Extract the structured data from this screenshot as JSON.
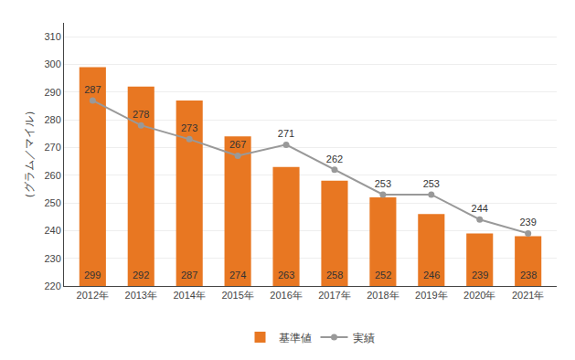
{
  "chart_data": {
    "type": "bar",
    "ylabel": "（グラム／マイル）",
    "categories": [
      "2012年",
      "2013年",
      "2014年",
      "2015年",
      "2016年",
      "2017年",
      "2018年",
      "2019年",
      "2020年",
      "2021年"
    ],
    "series": [
      {
        "name": "基準値",
        "type": "bar",
        "color": "#E87722",
        "values": [
          299,
          292,
          287,
          274,
          263,
          258,
          252,
          246,
          239,
          238
        ]
      },
      {
        "name": "実績",
        "type": "line",
        "color": "#999999",
        "marker": "circle",
        "values": [
          287,
          278,
          273,
          267,
          271,
          262,
          253,
          253,
          244,
          239
        ]
      }
    ],
    "ylim": [
      220,
      315
    ],
    "yticks": [
      220,
      230,
      240,
      250,
      260,
      270,
      280,
      290,
      300,
      310
    ],
    "grid": true,
    "legend": "bottom",
    "data_labels": true
  }
}
